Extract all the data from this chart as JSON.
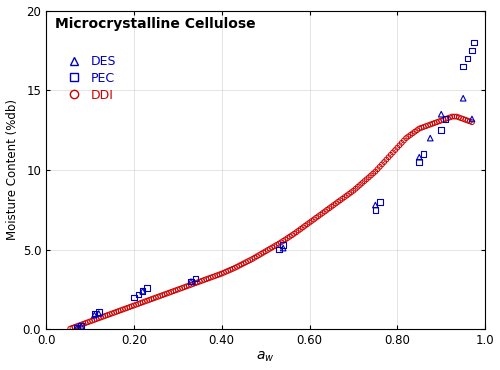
{
  "title": "Microcrystalline Cellulose",
  "ylabel": "Moisture Content (%db)",
  "xlim": [
    0.0,
    1.0
  ],
  "ylim": [
    0.0,
    20.0
  ],
  "xticks": [
    0.0,
    0.2,
    0.4,
    0.6,
    0.8,
    1.0
  ],
  "yticks": [
    0.0,
    5.0,
    10.0,
    15.0,
    20.0
  ],
  "xticklabels": [
    "0.0",
    "0.20",
    "0.40",
    "0.60",
    "0.80",
    "1.0"
  ],
  "yticklabels": [
    "0.0",
    "5.0",
    "10",
    "15",
    "20"
  ],
  "DES_color": "#0000bb",
  "PEC_color": "#0000bb",
  "DDI_color": "#cc0000",
  "DES_x": [
    0.07,
    0.08,
    0.11,
    0.12,
    0.22,
    0.33,
    0.54,
    0.75,
    0.85,
    0.875,
    0.9,
    0.95,
    0.97
  ],
  "DES_y": [
    0.1,
    0.2,
    0.9,
    1.0,
    2.4,
    3.0,
    5.1,
    7.8,
    10.8,
    12.0,
    13.5,
    14.5,
    13.2
  ],
  "PEC_x": [
    0.07,
    0.08,
    0.11,
    0.12,
    0.2,
    0.21,
    0.22,
    0.23,
    0.33,
    0.34,
    0.53,
    0.54,
    0.75,
    0.76,
    0.85,
    0.86,
    0.9,
    0.91,
    0.95,
    0.96,
    0.97,
    0.975
  ],
  "PEC_y": [
    0.1,
    0.2,
    1.0,
    1.1,
    2.0,
    2.2,
    2.4,
    2.6,
    3.0,
    3.2,
    5.0,
    5.3,
    7.5,
    8.0,
    10.5,
    11.0,
    12.5,
    13.2,
    16.5,
    17.0,
    17.5,
    18.0
  ],
  "DDI_x": [
    0.055,
    0.06,
    0.065,
    0.07,
    0.075,
    0.08,
    0.085,
    0.09,
    0.095,
    0.1,
    0.105,
    0.11,
    0.115,
    0.12,
    0.125,
    0.13,
    0.135,
    0.14,
    0.145,
    0.15,
    0.155,
    0.16,
    0.165,
    0.17,
    0.175,
    0.18,
    0.185,
    0.19,
    0.195,
    0.2,
    0.205,
    0.21,
    0.215,
    0.22,
    0.225,
    0.23,
    0.235,
    0.24,
    0.245,
    0.25,
    0.255,
    0.26,
    0.265,
    0.27,
    0.275,
    0.28,
    0.285,
    0.29,
    0.295,
    0.3,
    0.305,
    0.31,
    0.315,
    0.32,
    0.325,
    0.33,
    0.335,
    0.34,
    0.345,
    0.35,
    0.355,
    0.36,
    0.365,
    0.37,
    0.375,
    0.38,
    0.385,
    0.39,
    0.395,
    0.4,
    0.405,
    0.41,
    0.415,
    0.42,
    0.425,
    0.43,
    0.435,
    0.44,
    0.445,
    0.45,
    0.455,
    0.46,
    0.465,
    0.47,
    0.475,
    0.48,
    0.485,
    0.49,
    0.495,
    0.5,
    0.505,
    0.51,
    0.515,
    0.52,
    0.525,
    0.53,
    0.535,
    0.54,
    0.545,
    0.55,
    0.555,
    0.56,
    0.565,
    0.57,
    0.575,
    0.58,
    0.585,
    0.59,
    0.595,
    0.6,
    0.605,
    0.61,
    0.615,
    0.62,
    0.625,
    0.63,
    0.635,
    0.64,
    0.645,
    0.65,
    0.655,
    0.66,
    0.665,
    0.67,
    0.675,
    0.68,
    0.685,
    0.69,
    0.695,
    0.7,
    0.705,
    0.71,
    0.715,
    0.72,
    0.725,
    0.73,
    0.735,
    0.74,
    0.745,
    0.75,
    0.755,
    0.76,
    0.765,
    0.77,
    0.775,
    0.78,
    0.785,
    0.79,
    0.795,
    0.8,
    0.805,
    0.81,
    0.815,
    0.82,
    0.825,
    0.83,
    0.835,
    0.84,
    0.845,
    0.85,
    0.855,
    0.86,
    0.865,
    0.87,
    0.875,
    0.88,
    0.885,
    0.89,
    0.895,
    0.9,
    0.905,
    0.91,
    0.915,
    0.92,
    0.925,
    0.93,
    0.935,
    0.94,
    0.945,
    0.95,
    0.955,
    0.96,
    0.965,
    0.97
  ],
  "DDI_y": [
    0.05,
    0.1,
    0.15,
    0.2,
    0.25,
    0.3,
    0.35,
    0.4,
    0.45,
    0.5,
    0.55,
    0.6,
    0.65,
    0.7,
    0.75,
    0.8,
    0.85,
    0.9,
    0.95,
    1.0,
    1.05,
    1.1,
    1.15,
    1.2,
    1.25,
    1.3,
    1.35,
    1.4,
    1.45,
    1.5,
    1.55,
    1.6,
    1.65,
    1.7,
    1.75,
    1.8,
    1.85,
    1.9,
    1.95,
    2.0,
    2.05,
    2.1,
    2.15,
    2.2,
    2.25,
    2.3,
    2.35,
    2.4,
    2.45,
    2.5,
    2.55,
    2.6,
    2.65,
    2.7,
    2.75,
    2.8,
    2.85,
    2.9,
    2.95,
    3.0,
    3.05,
    3.1,
    3.15,
    3.2,
    3.25,
    3.3,
    3.35,
    3.4,
    3.45,
    3.5,
    3.56,
    3.62,
    3.68,
    3.74,
    3.8,
    3.86,
    3.93,
    4.0,
    4.07,
    4.14,
    4.21,
    4.28,
    4.35,
    4.42,
    4.5,
    4.58,
    4.66,
    4.74,
    4.82,
    4.9,
    4.98,
    5.06,
    5.14,
    5.22,
    5.3,
    5.38,
    5.46,
    5.55,
    5.64,
    5.73,
    5.82,
    5.91,
    6.0,
    6.1,
    6.2,
    6.3,
    6.4,
    6.5,
    6.6,
    6.7,
    6.8,
    6.9,
    7.0,
    7.1,
    7.2,
    7.3,
    7.4,
    7.5,
    7.6,
    7.7,
    7.8,
    7.9,
    8.0,
    8.1,
    8.2,
    8.3,
    8.4,
    8.5,
    8.6,
    8.7,
    8.82,
    8.94,
    9.06,
    9.18,
    9.3,
    9.42,
    9.54,
    9.66,
    9.78,
    9.9,
    10.05,
    10.2,
    10.35,
    10.5,
    10.65,
    10.8,
    10.95,
    11.1,
    11.25,
    11.4,
    11.55,
    11.7,
    11.85,
    12.0,
    12.1,
    12.2,
    12.3,
    12.4,
    12.5,
    12.6,
    12.65,
    12.7,
    12.75,
    12.8,
    12.85,
    12.9,
    12.95,
    13.0,
    13.05,
    13.1,
    13.15,
    13.2,
    13.25,
    13.3,
    13.35,
    13.35,
    13.35,
    13.3,
    13.25,
    13.2,
    13.15,
    13.1,
    13.05,
    13.0
  ]
}
